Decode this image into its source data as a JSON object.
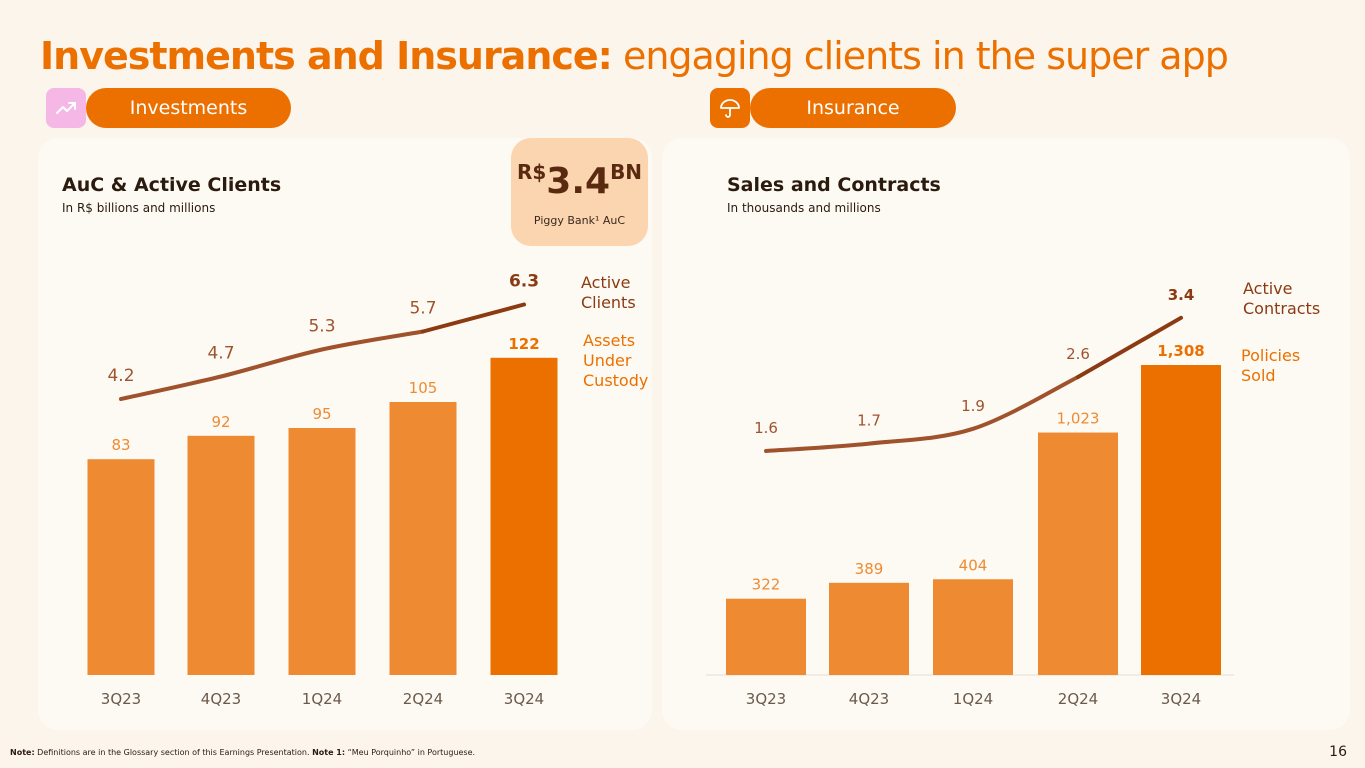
{
  "title": {
    "bold": "Investments and Insurance:",
    "light": " engaging clients in the super app"
  },
  "tabs": {
    "investments": "Investments",
    "insurance": "Insurance"
  },
  "icons": {
    "investments": "trending-up-icon",
    "insurance": "umbrella-icon"
  },
  "colors": {
    "accent": "#EC7000",
    "bar": "#EE8B32",
    "bar_highlight": "#EC7000",
    "line": "#A0522D",
    "line_highlight": "#8B3A12",
    "investments_icon_bg": "#F5B8E6",
    "badge_bg": "#FBD4B0"
  },
  "badge": {
    "currency": "R$",
    "value": "3.4",
    "unit": "BN",
    "caption": "Piggy Bank¹ AuC"
  },
  "left_panel": {
    "title": "AuC & Active Clients",
    "subtitle": "In R$ billions and millions",
    "legend_line": [
      "Active",
      "Clients"
    ],
    "legend_bar": [
      "Assets",
      "Under",
      "Custody"
    ]
  },
  "right_panel": {
    "title": "Sales and Contracts",
    "subtitle": "In thousands and millions",
    "legend_line": [
      "Active",
      "Contracts"
    ],
    "legend_bar": [
      "Policies",
      "Sold"
    ]
  },
  "chart_data": [
    {
      "type": "bar",
      "title": "AuC & Active Clients",
      "categories": [
        "3Q23",
        "4Q23",
        "1Q24",
        "2Q24",
        "3Q24"
      ],
      "series": [
        {
          "name": "Assets Under Custody",
          "kind": "bar",
          "values": [
            83,
            92,
            95,
            105,
            122
          ],
          "labels": [
            "83",
            "92",
            "95",
            "105",
            "122"
          ]
        },
        {
          "name": "Active Clients",
          "kind": "line",
          "values": [
            4.2,
            4.7,
            5.3,
            5.7,
            6.3
          ],
          "labels": [
            "4.2",
            "4.7",
            "5.3",
            "5.7",
            "6.3"
          ]
        }
      ],
      "ylabel": "In R$ billions and millions"
    },
    {
      "type": "bar",
      "title": "Sales and Contracts",
      "categories": [
        "3Q23",
        "4Q23",
        "1Q24",
        "2Q24",
        "3Q24"
      ],
      "series": [
        {
          "name": "Policies Sold",
          "kind": "bar",
          "values": [
            322,
            389,
            404,
            1023,
            1308
          ],
          "labels": [
            "322",
            "389",
            "404",
            "1,023",
            "1,308"
          ]
        },
        {
          "name": "Active Contracts",
          "kind": "line",
          "values": [
            1.6,
            1.7,
            1.9,
            2.6,
            3.4
          ],
          "labels": [
            "1.6",
            "1.7",
            "1.9",
            "2.6",
            "3.4"
          ]
        }
      ],
      "ylabel": "In thousands and millions"
    }
  ],
  "footer": {
    "note_label": "Note:",
    "note_text": " Definitions are in the Glossary section of this Earnings Presentation. ",
    "note1_label": "Note 1:",
    "note1_text": " “Meu Porquinho” in Portuguese.",
    "page_number": "16"
  }
}
